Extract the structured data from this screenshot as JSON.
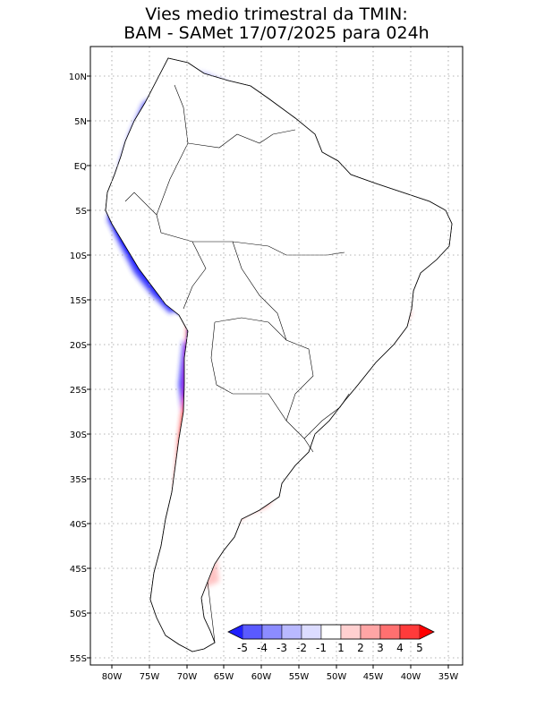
{
  "title": {
    "line1": "Vies medio trimestral da TMIN:",
    "line2": "BAM - SAMet 17/07/2025  para 024h"
  },
  "axes": {
    "lat_labels": [
      "10N",
      "5N",
      "EQ",
      "5S",
      "10S",
      "15S",
      "20S",
      "25S",
      "30S",
      "35S",
      "40S",
      "45S",
      "50S",
      "55S"
    ],
    "lon_labels": [
      "80W",
      "75W",
      "70W",
      "65W",
      "60W",
      "55W",
      "50W",
      "45W",
      "40W",
      "35W"
    ],
    "grid": "dotted"
  },
  "colorbar": {
    "labels": [
      "-5",
      "-4",
      "-3",
      "-2",
      "-1",
      "1",
      "2",
      "3",
      "4",
      "5"
    ],
    "colors": [
      "#1f1fff",
      "#5a5aff",
      "#8c8cff",
      "#b9b9ff",
      "#dcdcff",
      "#ffffff",
      "#ffd0d0",
      "#ffa5a5",
      "#ff7070",
      "#ff3b3b",
      "#ff0000"
    ]
  }
}
